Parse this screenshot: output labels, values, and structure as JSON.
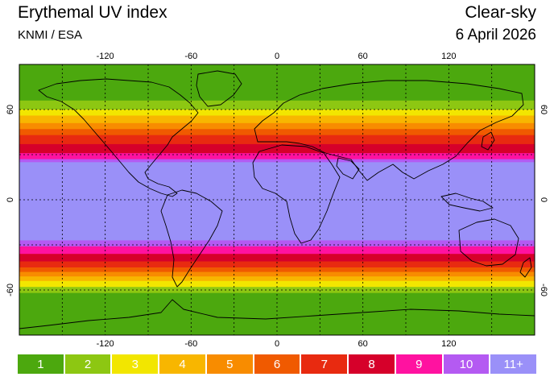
{
  "header": {
    "title": "Erythemal UV index",
    "source": "KNMI / ESA",
    "mode": "Clear-sky",
    "date": "6 April 2026"
  },
  "map": {
    "projection": "equirectangular",
    "lon_range": [
      -180,
      180
    ],
    "lat_range": [
      -90,
      90
    ],
    "lon_ticks": [
      "-120",
      "-60",
      "0",
      "60",
      "120"
    ],
    "lat_ticks": [
      "60",
      "0",
      "-60"
    ],
    "graticule": "dashed",
    "coastlines": true
  },
  "legend": [
    {
      "label": "1",
      "color": "#4CA80E"
    },
    {
      "label": "2",
      "color": "#8DC712"
    },
    {
      "label": "3",
      "color": "#F2E600"
    },
    {
      "label": "4",
      "color": "#F8B600"
    },
    {
      "label": "5",
      "color": "#F88C00"
    },
    {
      "label": "6",
      "color": "#F05A00"
    },
    {
      "label": "7",
      "color": "#E82A10"
    },
    {
      "label": "8",
      "color": "#D6002A"
    },
    {
      "label": "9",
      "color": "#FF12A0"
    },
    {
      "label": "10",
      "color": "#B45AF2"
    },
    {
      "label": "11+",
      "color": "#9A90F8"
    }
  ],
  "uv_profile": [
    {
      "lat": 90,
      "uvi": 1
    },
    {
      "lat": 74,
      "uvi": 1
    },
    {
      "lat": 66,
      "uvi": 2
    },
    {
      "lat": 60,
      "uvi": 3
    },
    {
      "lat": 56,
      "uvi": 4
    },
    {
      "lat": 51,
      "uvi": 5
    },
    {
      "lat": 47,
      "uvi": 6
    },
    {
      "lat": 43,
      "uvi": 7
    },
    {
      "lat": 37,
      "uvi": 8
    },
    {
      "lat": 31,
      "uvi": 9
    },
    {
      "lat": 27,
      "uvi": 10
    },
    {
      "lat": 25,
      "uvi": 11
    },
    {
      "lat": -25,
      "uvi": 11
    },
    {
      "lat": -27,
      "uvi": 10
    },
    {
      "lat": -31,
      "uvi": 9
    },
    {
      "lat": -36,
      "uvi": 8
    },
    {
      "lat": -41,
      "uvi": 7
    },
    {
      "lat": -45,
      "uvi": 6
    },
    {
      "lat": -48,
      "uvi": 5
    },
    {
      "lat": -51,
      "uvi": 4
    },
    {
      "lat": -54,
      "uvi": 3
    },
    {
      "lat": -58,
      "uvi": 2
    },
    {
      "lat": -62,
      "uvi": 1
    },
    {
      "lat": -90,
      "uvi": 1
    }
  ]
}
